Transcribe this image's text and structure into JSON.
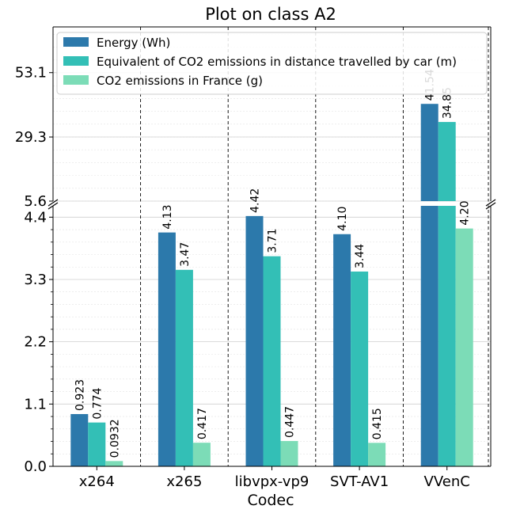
{
  "chart_data": {
    "type": "bar",
    "title": "Plot on class A2",
    "xlabel": "Codec",
    "ylabel": "",
    "categories": [
      "x264",
      "x265",
      "libvpx-vp9",
      "SVT-AV1",
      "VVenC"
    ],
    "series": [
      {
        "name": "Energy (Wh)",
        "values": [
          0.923,
          4.13,
          4.42,
          4.1,
          41.54
        ],
        "labels": [
          "0.923",
          "4.13",
          "4.42",
          "4.10",
          "41.54"
        ]
      },
      {
        "name": "Equivalent of CO2 emissions in distance travelled by car (m)",
        "values": [
          0.774,
          3.47,
          3.71,
          3.44,
          34.85
        ],
        "labels": [
          "0.774",
          "3.47",
          "3.71",
          "3.44",
          "34.85"
        ]
      },
      {
        "name": "CO2 emissions in France (g)",
        "values": [
          0.0932,
          0.417,
          0.447,
          0.415,
          4.2
        ],
        "labels": [
          "0.0932",
          "0.417",
          "0.447",
          "0.415",
          "4.20"
        ]
      }
    ],
    "colors": [
      "#2c79ab",
      "#33bfb6",
      "#7cdcb7"
    ],
    "axis_break": true,
    "lower_ylim": [
      0,
      4.6
    ],
    "lower_yticks": [
      "0.0",
      "1.1",
      "2.2",
      "3.3",
      "4.4"
    ],
    "upper_ylim": [
      5.6,
      70
    ],
    "upper_yticks": [
      "5.6",
      "29.3",
      "53.1"
    ],
    "grid": true,
    "legend_position": "top-left"
  }
}
